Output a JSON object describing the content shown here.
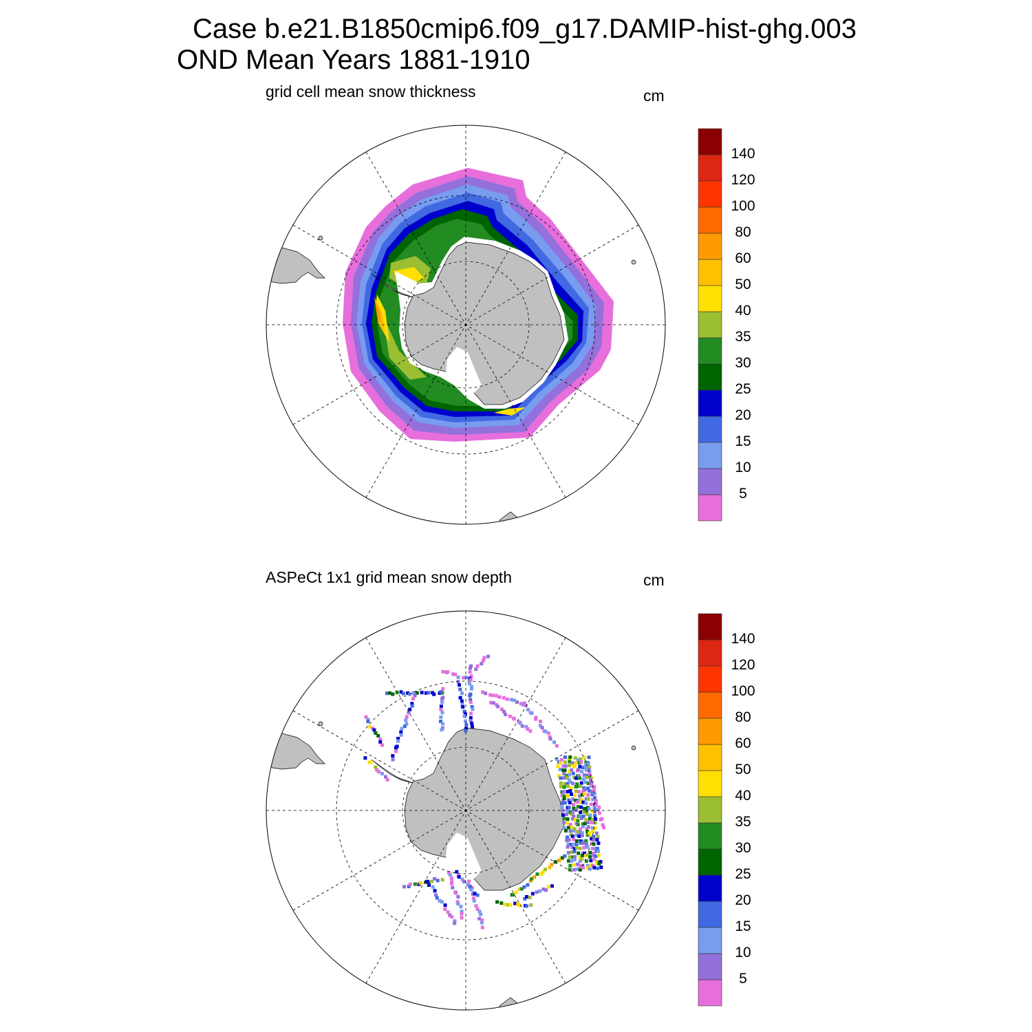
{
  "figure": {
    "title_line1": "Case b.e21.B1850cmip6.f09_g17.DAMIP-hist-ghg.003",
    "title_line2": "OND Mean   Years 1881-1910"
  },
  "colorbar": {
    "levels": [
      "5",
      "10",
      "15",
      "20",
      "25",
      "30",
      "35",
      "40",
      "50",
      "60",
      "80",
      "100",
      "120",
      "140"
    ],
    "colors": [
      "#e66fdc",
      "#9370db",
      "#789cf0",
      "#4169e1",
      "#0000cd",
      "#006400",
      "#228b22",
      "#9cbe32",
      "#ffe000",
      "#ffc000",
      "#ff9b00",
      "#ff6a00",
      "#ff3500",
      "#dd2712",
      "#8b0000"
    ]
  },
  "land_color": "#c0c0c0",
  "panels": [
    {
      "title": "grid cell mean snow thickness",
      "unit": "cm",
      "kind": "model"
    },
    {
      "title": "ASPeCt 1x1 grid mean snow depth",
      "unit": "cm",
      "kind": "observations"
    }
  ]
}
